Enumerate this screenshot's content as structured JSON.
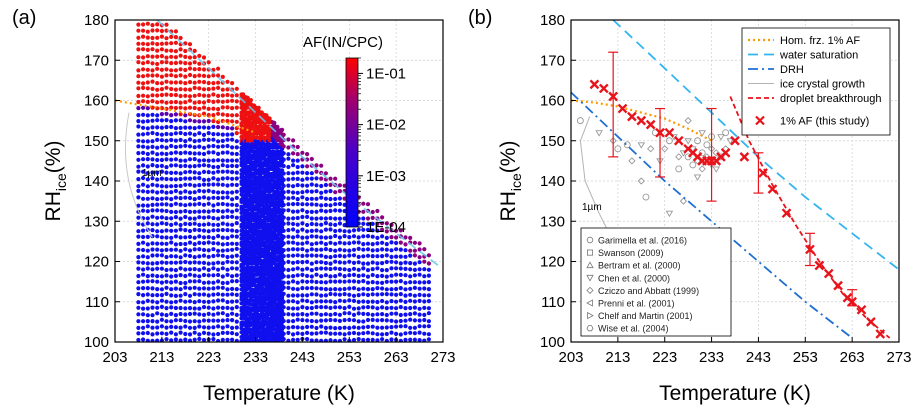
{
  "chart_data": [
    {
      "type": "scatter",
      "panel_label": "(a)",
      "xlabel": "Temperature (K)",
      "ylabel": {
        "main": "RH",
        "sub": "ice",
        "rest": "(%)"
      },
      "xlim": [
        203,
        273
      ],
      "ylim": [
        100,
        180
      ],
      "xticks": [
        "203",
        "213",
        "223",
        "233",
        "243",
        "253",
        "263",
        "273"
      ],
      "yticks": [
        "100",
        "110",
        "120",
        "130",
        "140",
        "150",
        "160",
        "170",
        "180"
      ],
      "colorbar": {
        "title": "AF(IN/CPC)",
        "scale": "log",
        "range": [
          0.0001,
          0.2
        ],
        "colors": [
          "#0000ff",
          "#ff0000"
        ],
        "ticks": [
          "1E-01",
          "1E-02",
          "1E-03",
          "1E-04"
        ]
      },
      "scan_region": {
        "t_min": 208,
        "t_max": 270,
        "dense_block": [
          230,
          238
        ]
      },
      "red_threshold_line": [
        [
          208,
          159
        ],
        [
          215,
          157
        ],
        [
          222,
          155.5
        ],
        [
          229,
          153
        ],
        [
          233,
          150
        ]
      ],
      "red_dense_top": [
        [
          228,
          165
        ],
        [
          233,
          162
        ],
        [
          236,
          157
        ]
      ],
      "water_saturation": [
        [
          212,
          180
        ],
        [
          223,
          168
        ],
        [
          233,
          157
        ],
        [
          243,
          146
        ],
        [
          253,
          136
        ],
        [
          263,
          127
        ],
        [
          272,
          119
        ]
      ],
      "homogeneous_freezing": [
        [
          203,
          160
        ],
        [
          213,
          158
        ],
        [
          223,
          156
        ],
        [
          233,
          152
        ]
      ],
      "grid": true
    },
    {
      "type": "scatter",
      "panel_label": "(b)",
      "xlabel": "Temperature (K)",
      "ylabel": {
        "main": "RH",
        "sub": "ice",
        "rest": "(%)"
      },
      "xlim": [
        203,
        273
      ],
      "ylim": [
        100,
        180
      ],
      "xticks": [
        "203",
        "213",
        "223",
        "233",
        "243",
        "253",
        "263",
        "273"
      ],
      "yticks": [
        "100",
        "110",
        "120",
        "130",
        "140",
        "150",
        "160",
        "170",
        "180"
      ],
      "annotation": "1µm",
      "series": [
        {
          "name": "Hom. frz. 1% AF",
          "style": "dotted",
          "color": "#ff9900",
          "points": [
            [
              203,
              160
            ],
            [
              208,
              159.5
            ],
            [
              213,
              158.5
            ],
            [
              218,
              157
            ],
            [
              223,
              155.5
            ],
            [
              228,
              153
            ],
            [
              233,
              150
            ]
          ]
        },
        {
          "name": "water saturation",
          "style": "dashed",
          "color": "#33b5f0",
          "points": [
            [
              212,
              180
            ],
            [
              223,
              168
            ],
            [
              233,
              157
            ],
            [
              243,
              146
            ],
            [
              253,
              136
            ],
            [
              263,
              127
            ],
            [
              273,
              118
            ]
          ]
        },
        {
          "name": "DRH",
          "style": "dashdot",
          "color": "#1f6fd1",
          "points": [
            [
              203,
              162
            ],
            [
              213,
              151
            ],
            [
              223,
              140
            ],
            [
              233,
              130
            ],
            [
              243,
              120
            ],
            [
              253,
              110
            ],
            [
              263,
              101
            ]
          ]
        },
        {
          "name": "ice crystal growth",
          "style": "solid",
          "color": "#b3b3b3",
          "points": [
            [
              207,
              156
            ],
            [
              205,
              150
            ],
            [
              206,
              140
            ],
            [
              209,
              132
            ],
            [
              212,
              125
            ]
          ]
        },
        {
          "name": "droplet breakthrough",
          "style": "dashed-fine",
          "color": "#e8141c",
          "points": [
            [
              237,
              161
            ],
            [
              241,
              150
            ],
            [
              246,
              139
            ],
            [
              251,
              129
            ],
            [
              256,
              120
            ],
            [
              261,
              112
            ],
            [
              266,
              106
            ],
            [
              271,
              101
            ]
          ]
        },
        {
          "name": "1% AF (this study)",
          "style": "marker-x",
          "color": "#e8141c",
          "points": [
            [
              208,
              164
            ],
            [
              210,
              163
            ],
            [
              212,
              161
            ],
            [
              214,
              158
            ],
            [
              216,
              156
            ],
            [
              218,
              155
            ],
            [
              220,
              154
            ],
            [
              222,
              152
            ],
            [
              224,
              152
            ],
            [
              226,
              150
            ],
            [
              228,
              148
            ],
            [
              229,
              147
            ],
            [
              230,
              146
            ],
            [
              231,
              145
            ],
            [
              232,
              145
            ],
            [
              233,
              145
            ],
            [
              234,
              145
            ],
            [
              235,
              146
            ],
            [
              236,
              147
            ],
            [
              238,
              150
            ],
            [
              240,
              146
            ],
            [
              244,
              142
            ],
            [
              246,
              138
            ],
            [
              249,
              132
            ],
            [
              254,
              123
            ],
            [
              256,
              119
            ],
            [
              258,
              117
            ],
            [
              260,
              114
            ],
            [
              262,
              111
            ],
            [
              263,
              110
            ],
            [
              265,
              108
            ],
            [
              267,
              105
            ],
            [
              269,
              102
            ]
          ]
        }
      ],
      "error_bars": [
        {
          "x": 212,
          "y": 161,
          "ylow": 146,
          "yhigh": 172
        },
        {
          "x": 222,
          "y": 152,
          "ylow": 141,
          "yhigh": 158
        },
        {
          "x": 233,
          "y": 145,
          "ylow": 135,
          "yhigh": 158
        },
        {
          "x": 243,
          "y": 142,
          "ylow": 137,
          "yhigh": 147
        },
        {
          "x": 254,
          "y": 123,
          "ylow": 119,
          "yhigh": 127
        },
        {
          "x": 263,
          "y": 111,
          "ylow": 109,
          "yhigh": 113
        }
      ],
      "literature_legend": [
        "Garimella et al. (2016)",
        "Swanson (2009)",
        "Bertram et al. (2000)",
        "Chen et al. (2000)",
        "Cziczo and Abbatt (1999)",
        "Prenni et al. (2001)",
        "Chelf and Martin (2001)",
        "Wise et al. (2004)"
      ],
      "literature_points": [
        [
          205,
          155
        ],
        [
          209,
          152
        ],
        [
          212,
          150
        ],
        [
          215,
          149
        ],
        [
          218,
          149
        ],
        [
          220,
          148
        ],
        [
          221,
          152
        ],
        [
          222,
          145
        ],
        [
          223,
          148
        ],
        [
          224,
          150
        ],
        [
          225,
          151
        ],
        [
          226,
          146
        ],
        [
          226,
          143
        ],
        [
          227,
          147
        ],
        [
          227,
          135
        ],
        [
          228,
          146
        ],
        [
          228,
          150
        ],
        [
          228,
          155
        ],
        [
          229,
          144
        ],
        [
          229,
          148
        ],
        [
          230,
          145
        ],
        [
          230,
          150
        ],
        [
          230,
          141
        ],
        [
          231,
          143
        ],
        [
          231,
          147
        ],
        [
          231,
          152
        ],
        [
          232,
          146
        ],
        [
          232,
          149
        ],
        [
          233,
          144
        ],
        [
          233,
          148
        ],
        [
          233,
          151
        ],
        [
          234,
          143
        ],
        [
          234,
          147
        ],
        [
          235,
          146
        ],
        [
          235,
          151
        ],
        [
          236,
          148
        ],
        [
          236,
          152
        ],
        [
          237,
          150
        ],
        [
          218,
          140
        ],
        [
          219,
          136
        ],
        [
          224,
          132
        ],
        [
          216,
          145
        ],
        [
          213,
          148
        ]
      ],
      "grid": true
    }
  ]
}
